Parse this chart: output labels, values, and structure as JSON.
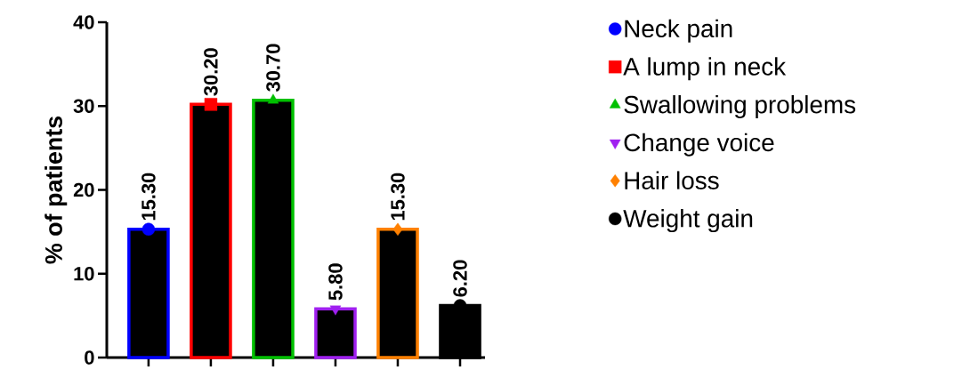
{
  "chart_data": {
    "type": "bar",
    "ylabel": "% of patients",
    "categories": [
      null,
      null,
      null,
      null,
      null,
      null
    ],
    "series": [
      {
        "colors": [
          "#0000ff",
          "#ff0000",
          "#00c000",
          "#a020f0",
          "#ff8000",
          "#000000"
        ],
        "values": [
          15.3,
          30.2,
          30.7,
          5.8,
          15.3,
          6.2
        ],
        "value_labels": [
          "15.30",
          "30.20",
          "30.70",
          "5.80",
          "15.30",
          "6.20"
        ]
      },
      {
        "type": "scatter",
        "name": "Neck pain",
        "color": "#0000ff",
        "marker": "circle",
        "values": [
          15.3,
          null,
          null,
          null,
          null,
          null
        ]
      },
      {
        "type": "scatter",
        "name": "A lump in neck",
        "color": "#ff0000",
        "marker": "square",
        "values": [
          null,
          30.2,
          null,
          null,
          null,
          null
        ]
      },
      {
        "type": "scatter",
        "name": "Swallowing problems",
        "color": "#00c000",
        "marker": "triangle",
        "values": [
          null,
          null,
          30.7,
          null,
          null,
          null
        ]
      },
      {
        "type": "scatter",
        "name": "Change voice",
        "color": "#a020f0",
        "marker": "triangle-down",
        "values": [
          null,
          null,
          null,
          5.8,
          null,
          null
        ]
      },
      {
        "type": "scatter",
        "name": "Hair loss",
        "color": "#ff8000",
        "marker": "diamond",
        "values": [
          null,
          null,
          null,
          null,
          15.3,
          null
        ]
      },
      {
        "type": "scatter",
        "name": "Weight gain",
        "color": "#000000",
        "marker": "circle",
        "values": [
          null,
          null,
          null,
          null,
          null,
          6.2
        ]
      }
    ],
    "ylim": [
      0,
      40
    ],
    "yticks": [
      0,
      10,
      20,
      30,
      40
    ],
    "grid": false,
    "legend": "right",
    "tick_labels": "y"
  }
}
